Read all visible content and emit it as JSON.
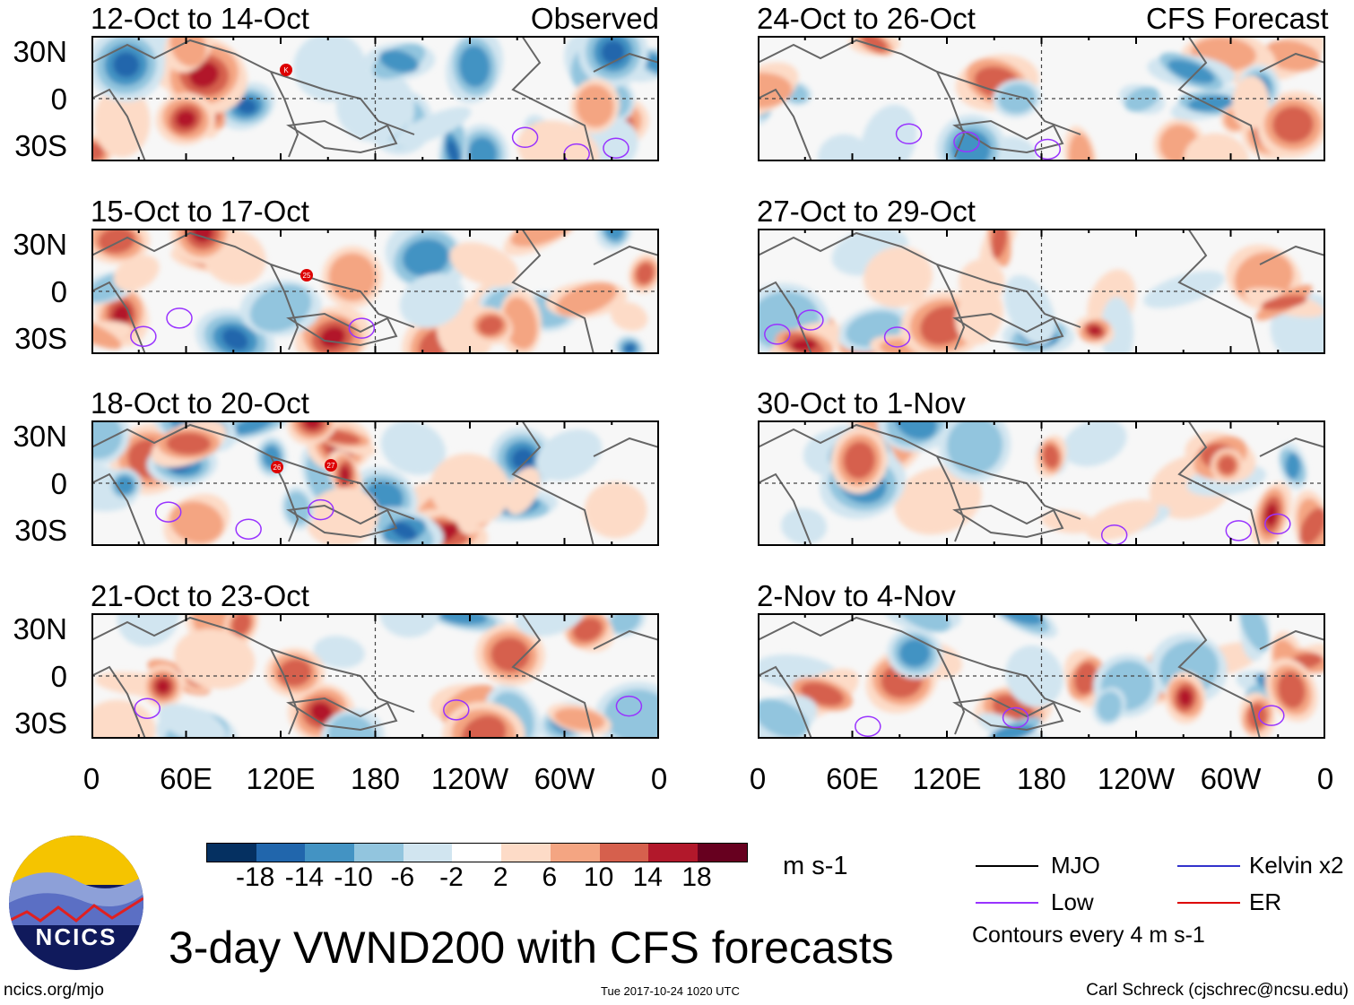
{
  "panels_left_header": "Observed",
  "panels_right_header": "CFS Forecast",
  "panels": [
    {
      "title": "12-Oct to 14-Oct",
      "storms": [
        "K"
      ]
    },
    {
      "title": "15-Oct to 17-Oct",
      "storms": [
        "25"
      ]
    },
    {
      "title": "18-Oct to 20-Oct",
      "storms": [
        "26",
        "27"
      ]
    },
    {
      "title": "21-Oct to 23-Oct",
      "storms": []
    },
    {
      "title": "24-Oct to 26-Oct",
      "storms": []
    },
    {
      "title": "27-Oct to 29-Oct",
      "storms": []
    },
    {
      "title": "30-Oct to 1-Nov",
      "storms": []
    },
    {
      "title": "2-Nov to 4-Nov",
      "storms": []
    }
  ],
  "lat_labels": [
    "30N",
    "0",
    "30S"
  ],
  "lon_labels": [
    "0",
    "60E",
    "120E",
    "180",
    "120W",
    "60W",
    "0"
  ],
  "colorbar": {
    "colors": [
      "#053061",
      "#2166ac",
      "#4393c3",
      "#92c5de",
      "#d1e5f0",
      "#ffffff",
      "#fddbc7",
      "#f4a582",
      "#d6604d",
      "#b2182b",
      "#67001f"
    ],
    "labels": [
      "-18",
      "-14",
      "-10",
      "-6",
      "-2",
      "2",
      "6",
      "10",
      "14",
      "18"
    ],
    "units": "m s-1"
  },
  "legend": {
    "items": [
      {
        "label": "MJO",
        "color": "#000000"
      },
      {
        "label": "Kelvin x2",
        "color": "#3333cc"
      },
      {
        "label": "Low",
        "color": "#9933ff"
      },
      {
        "label": "ER",
        "color": "#dd0000"
      }
    ],
    "note": "Contours every 4 m s-1"
  },
  "logo_text": "NCICS",
  "title": "3-day VWND200 with CFS forecasts",
  "footer": {
    "url": "ncics.org/mjo",
    "timestamp": "Tue 2017-10-24 1020 UTC",
    "author": "Carl Schreck (cjschrec@ncsu.edu)"
  }
}
